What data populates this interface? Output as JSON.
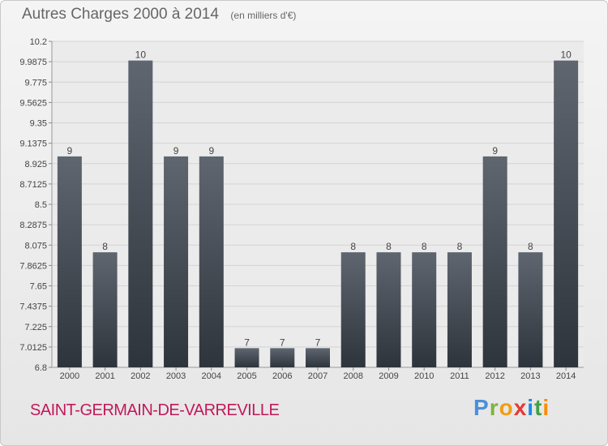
{
  "header": {
    "title": "Autres Charges 2000 à 2014",
    "unit": "(en milliers d'€)"
  },
  "footer": {
    "commune": "SAINT-GERMAIN-DE-VARREVILLE",
    "logo": [
      {
        "ch": "P",
        "color": "#4a90d9"
      },
      {
        "ch": "r",
        "color": "#7cb342"
      },
      {
        "ch": "o",
        "color": "#f39c12"
      },
      {
        "ch": "x",
        "color": "#e53935"
      },
      {
        "ch": "i",
        "color": "#1e88e5"
      },
      {
        "ch": "t",
        "color": "#43a047"
      },
      {
        "ch": "i",
        "color": "#fb8c00"
      }
    ]
  },
  "colors": {
    "bar_top": "#5f6670",
    "bar_bottom": "#2e343b",
    "grid": "#d4d4d4",
    "text": "#444444"
  },
  "chart_data": {
    "type": "bar",
    "title": "Autres Charges 2000 à 2014",
    "subtitle": "(en milliers d'€)",
    "categories": [
      "2000",
      "2001",
      "2002",
      "2003",
      "2004",
      "2005",
      "2006",
      "2007",
      "2008",
      "2009",
      "2010",
      "2011",
      "2012",
      "2013",
      "2014"
    ],
    "values": [
      9,
      8,
      10,
      9,
      9,
      7,
      7,
      7,
      8,
      8,
      8,
      8,
      9,
      8,
      10
    ],
    "data_labels": [
      "9",
      "8",
      "10",
      "9",
      "9",
      "7",
      "7",
      "7",
      "8",
      "8",
      "8",
      "8",
      "9",
      "8",
      "10"
    ],
    "ylim": [
      6.8,
      10.2
    ],
    "yticks": [
      "6.8",
      "7.0125",
      "7.225",
      "7.4375",
      "7.65",
      "7.8625",
      "8.075",
      "8.2875",
      "8.5",
      "8.7125",
      "8.925",
      "9.1375",
      "9.35",
      "9.5625",
      "9.775",
      "9.9875",
      "10.2"
    ],
    "grid": true,
    "legend": "none"
  }
}
